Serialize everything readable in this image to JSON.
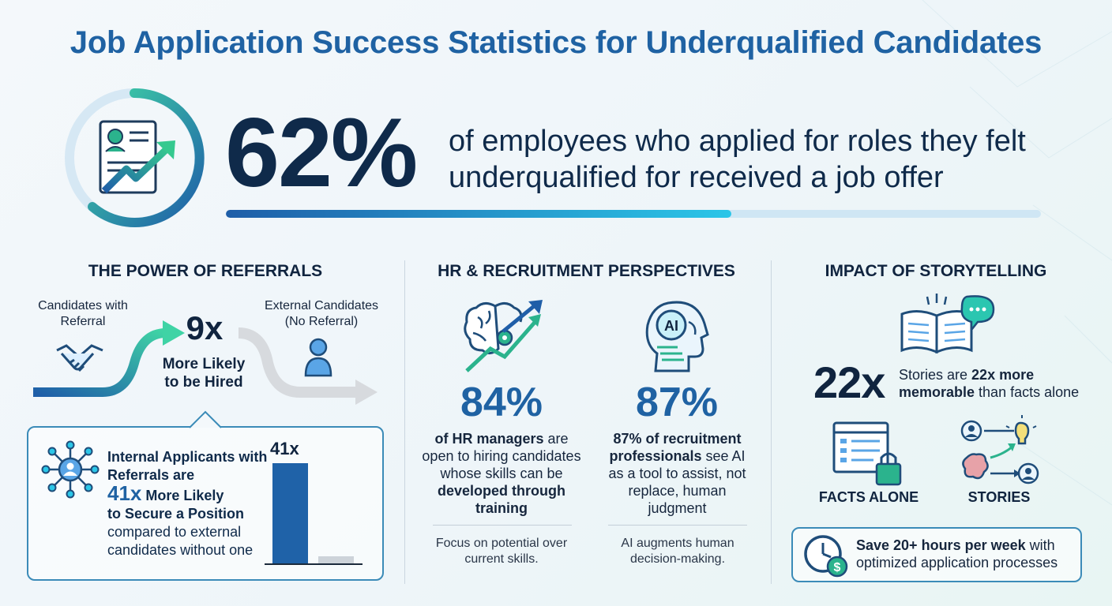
{
  "title": "Job Application Success Statistics for Underqualified Candidates",
  "hero": {
    "percent": "62%",
    "percent_value": 0.62,
    "text": "of employees who applied for roles they felt underqualified for received a job offer"
  },
  "referrals": {
    "heading": "THE POWER OF REFERRALS",
    "with_referral_label": "Candidates with Referral",
    "external_label": "External Candidates (No Referral)",
    "multiplier": "9x",
    "multiplier_caption": "More Likely to be Hired",
    "internal": {
      "line1": "Internal Applicants with Referrals are",
      "multiplier": "41x",
      "line2": "More Likely",
      "line3": "to Secure a Position",
      "line4": "compared to external candidates without one"
    },
    "bar_label": "41x"
  },
  "hr": {
    "heading": "HR & RECRUITMENT PERSPECTIVES",
    "left": {
      "percent": "84%",
      "text_bold": "of HR managers",
      "text_rest": " are open to hiring candidates whose skills can be ",
      "text_bold2": "developed through training",
      "footer": "Focus on potential over current skills."
    },
    "right": {
      "percent": "87%",
      "text_bold": "87% of recruitment professionals",
      "text_rest": " see AI as a tool to assist, not replace, human judgment",
      "footer": "AI augments human decision-making.",
      "icon_label": "AI"
    }
  },
  "storytelling": {
    "heading": "IMPACT OF STORYTELLING",
    "multiplier": "22x",
    "text_pre": "Stories are ",
    "text_bold": "22x more memorable",
    "text_post": " than facts alone",
    "facts_label": "FACTS ALONE",
    "stories_label": "STORIES",
    "save_bold": "Save 20+ hours per week",
    "save_rest": " with optimized application processes"
  },
  "colors": {
    "title_blue": "#1f62a3",
    "navy": "#0f2a4a",
    "teal": "#23a98a",
    "accent_cyan": "#2bc6e8"
  }
}
